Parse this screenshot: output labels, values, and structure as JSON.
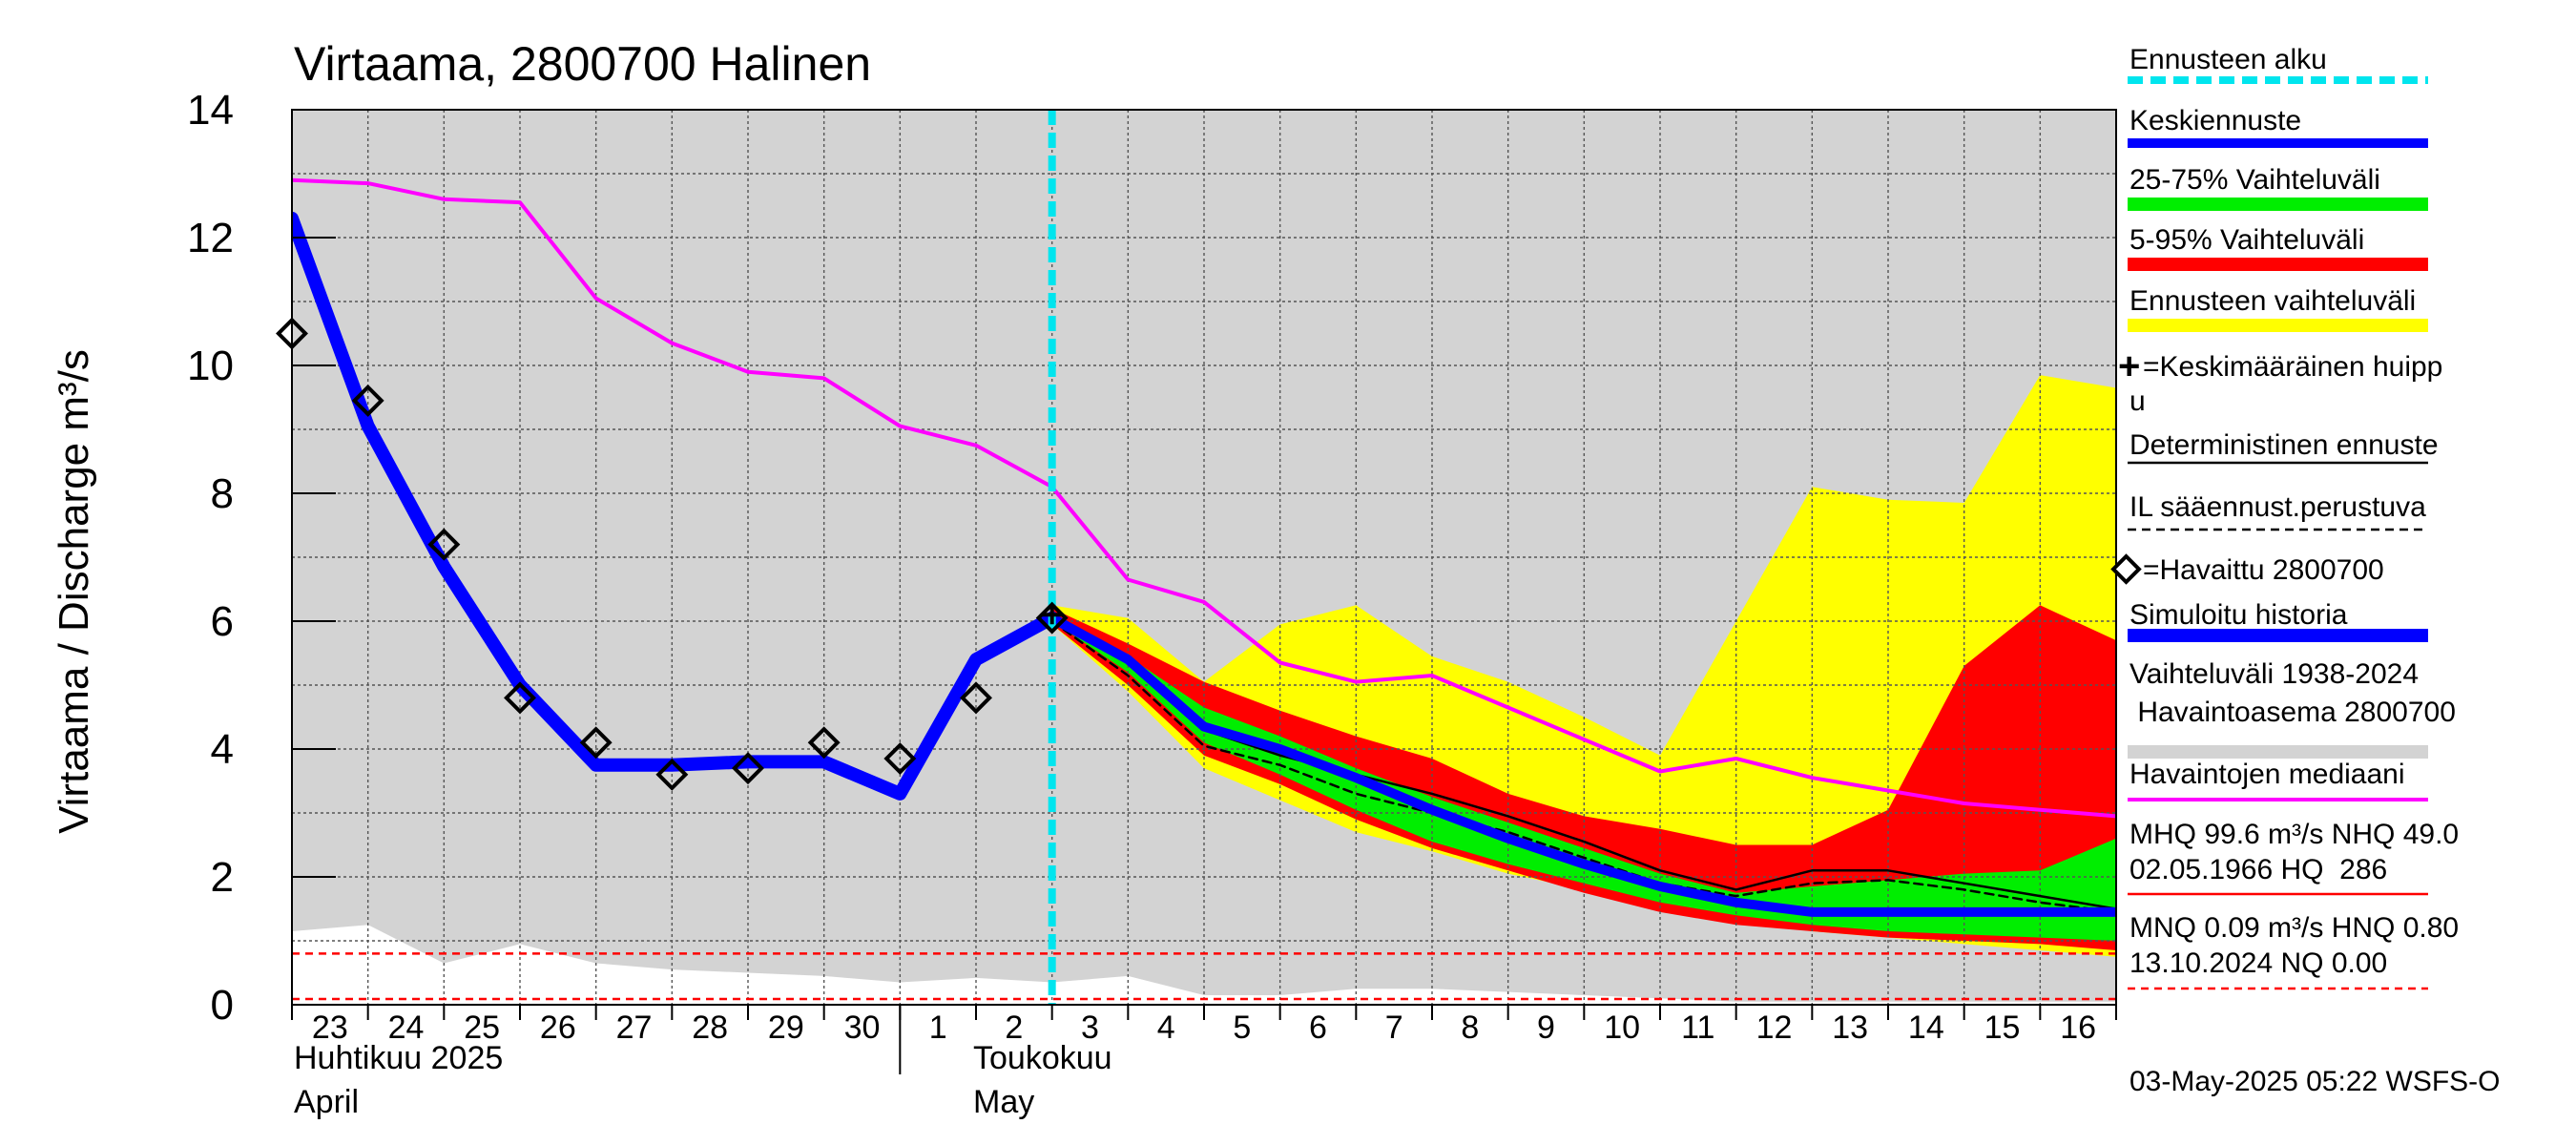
{
  "chart_data": {
    "type": "line",
    "title": "Virtaama, 2800700 Halinen",
    "ylabel": "Virtaama / Discharge   m³/s",
    "ylim": [
      0,
      14
    ],
    "y_ticks": [
      "0",
      "2",
      "4",
      "6",
      "8",
      "10",
      "12",
      "14"
    ],
    "x_tick_labels": [
      "23",
      "24",
      "25",
      "26",
      "27",
      "28",
      "29",
      "30",
      "1",
      "2",
      "3",
      "4",
      "5",
      "6",
      "7",
      "8",
      "9",
      "10",
      "11",
      "12",
      "13",
      "14",
      "15",
      "16"
    ],
    "month_labels": {
      "april_fi": "Huhtikuu  2025",
      "april_en": "April",
      "may_fi": "Toukokuu",
      "may_en": "May"
    },
    "x_days": [
      0,
      1,
      2,
      3,
      4,
      5,
      6,
      7,
      8,
      9,
      10,
      11,
      12,
      13,
      14,
      15,
      16,
      17,
      18,
      19,
      20,
      21,
      22,
      23,
      24
    ],
    "forecast_start_day": 10,
    "series": [
      {
        "name": "Vaihteluväli 1938-2024 Havaintoasema 2800700 (max)",
        "color": "#d3d3d3",
        "values": [
          14,
          14,
          14,
          14,
          14,
          14,
          14,
          14,
          14,
          14,
          14,
          14,
          14,
          14,
          14,
          14,
          14,
          14,
          14,
          14,
          14,
          14,
          14,
          14,
          14
        ]
      },
      {
        "name": "Vaihteluväli 1938-2024 Havaintoasema 2800700 (min)",
        "color": "#d3d3d3",
        "values": [
          1.15,
          1.25,
          0.65,
          0.95,
          0.65,
          0.55,
          0.5,
          0.45,
          0.35,
          0.42,
          0.35,
          0.45,
          0.15,
          0.15,
          0.25,
          0.25,
          0.2,
          0.15,
          0.1,
          0.05,
          0.05,
          0.05,
          0.05,
          0.05,
          0.05
        ]
      },
      {
        "name": "Ennusteen vaihteluväli (max)",
        "color": "#ffff00",
        "x": [
          10,
          11,
          12,
          13,
          14,
          15,
          16,
          17,
          18,
          19,
          20,
          21,
          22,
          23,
          24
        ],
        "values": [
          6.25,
          6.05,
          5.05,
          5.95,
          6.25,
          5.45,
          5.05,
          4.5,
          3.9,
          6.0,
          8.1,
          7.9,
          7.85,
          9.85,
          9.65
        ]
      },
      {
        "name": "Ennusteen vaihteluväli (min)",
        "color": "#ffff00",
        "x": [
          10,
          11,
          12,
          13,
          14,
          15,
          16,
          17,
          18,
          19,
          20,
          21,
          22,
          23,
          24
        ],
        "values": [
          5.95,
          4.9,
          3.7,
          3.2,
          2.7,
          2.4,
          2.05,
          1.8,
          1.5,
          1.3,
          1.15,
          1.05,
          0.95,
          0.85,
          0.75
        ]
      },
      {
        "name": "5-95% Vaihteluväli (upper)",
        "color": "#ff0000",
        "x": [
          10,
          11,
          12,
          13,
          14,
          15,
          16,
          17,
          18,
          19,
          20,
          21,
          22,
          23,
          24
        ],
        "values": [
          6.2,
          5.65,
          5.05,
          4.6,
          4.2,
          3.85,
          3.3,
          2.95,
          2.75,
          2.5,
          2.5,
          3.05,
          5.3,
          6.25,
          5.7
        ]
      },
      {
        "name": "5-95% Vaihteluväli (lower)",
        "color": "#ff0000",
        "x": [
          10,
          11,
          12,
          13,
          14,
          15,
          16,
          17,
          18,
          19,
          20,
          21,
          22,
          23,
          24
        ],
        "values": [
          5.95,
          5.0,
          3.9,
          3.45,
          2.9,
          2.45,
          2.1,
          1.75,
          1.45,
          1.25,
          1.15,
          1.05,
          1.0,
          0.95,
          0.85
        ]
      },
      {
        "name": "25-75% Vaihteluväli (upper)",
        "color": "#00ee00",
        "x": [
          10,
          11,
          12,
          13,
          14,
          15,
          16,
          17,
          18,
          19,
          20,
          21,
          22,
          23,
          24
        ],
        "values": [
          6.1,
          5.45,
          4.65,
          4.2,
          3.7,
          3.25,
          2.85,
          2.45,
          2.05,
          1.75,
          1.85,
          1.95,
          2.05,
          2.1,
          2.6
        ]
      },
      {
        "name": "25-75% Vaihteluväli (lower)",
        "color": "#00ee00",
        "x": [
          10,
          11,
          12,
          13,
          14,
          15,
          16,
          17,
          18,
          19,
          20,
          21,
          22,
          23,
          24
        ],
        "values": [
          6.0,
          5.2,
          4.1,
          3.6,
          3.05,
          2.55,
          2.2,
          1.9,
          1.6,
          1.4,
          1.25,
          1.15,
          1.1,
          1.05,
          1.0
        ]
      },
      {
        "name": "Havaintojen mediaani",
        "color": "#ff00ff",
        "values": [
          12.9,
          12.85,
          12.6,
          12.55,
          11.05,
          10.35,
          9.9,
          9.8,
          9.05,
          8.75,
          8.1,
          6.65,
          6.3,
          5.35,
          5.05,
          5.15,
          4.65,
          4.15,
          3.65,
          3.85,
          3.55,
          3.35,
          3.15,
          3.05,
          2.95
        ]
      },
      {
        "name": "Deterministinen ennuste",
        "color": "#000000",
        "x": [
          10,
          11,
          12,
          13,
          14,
          15,
          16,
          17,
          18,
          19,
          20,
          21,
          22,
          23,
          24
        ],
        "values": [
          6.1,
          5.4,
          4.3,
          3.9,
          3.6,
          3.3,
          2.95,
          2.55,
          2.1,
          1.8,
          2.1,
          2.1,
          1.9,
          1.7,
          1.5
        ]
      },
      {
        "name": "IL sääennust.perustuva",
        "color": "#000000",
        "dashed": true,
        "x": [
          10,
          11,
          12,
          13,
          14,
          15,
          16,
          17,
          18,
          19,
          20,
          21,
          22,
          23,
          24
        ],
        "values": [
          6.0,
          5.15,
          4.05,
          3.75,
          3.3,
          3.0,
          2.7,
          2.3,
          1.9,
          1.7,
          1.9,
          1.95,
          1.8,
          1.6,
          1.45
        ]
      },
      {
        "name": "Keskiennuste",
        "color": "#0000ff",
        "x": [
          10,
          11,
          12,
          13,
          14,
          15,
          16,
          17,
          18,
          19,
          20,
          21,
          22,
          23,
          24
        ],
        "values": [
          6.05,
          5.4,
          4.35,
          4.0,
          3.55,
          3.05,
          2.6,
          2.2,
          1.85,
          1.6,
          1.45,
          1.45,
          1.45,
          1.45,
          1.45
        ]
      },
      {
        "name": "Simuloitu historia",
        "color": "#0000ff",
        "x": [
          0,
          1,
          2,
          3,
          4,
          5,
          6,
          7,
          8,
          9,
          10
        ],
        "values": [
          12.3,
          9.05,
          6.85,
          5.0,
          3.75,
          3.75,
          3.8,
          3.8,
          3.3,
          5.4,
          6.05
        ]
      },
      {
        "name": "Havaittu 2800700",
        "marker": "diamond",
        "x": [
          0,
          1,
          2,
          3,
          4,
          5,
          6,
          7,
          8,
          9,
          10
        ],
        "values": [
          10.5,
          9.45,
          7.2,
          4.8,
          4.1,
          3.6,
          3.7,
          4.1,
          3.85,
          4.8,
          6.05
        ]
      }
    ],
    "reference_lines": [
      {
        "name": "MHQ 99.6",
        "value": 99.6,
        "color": "#ff0000"
      },
      {
        "name": "HNQ 0.80",
        "value": 0.8,
        "color": "#ff0000"
      },
      {
        "name": "MNQ 0.09",
        "value": 0.09,
        "color": "#ff0000"
      }
    ],
    "legend_position": "right",
    "grid": true
  },
  "legend": {
    "forecast_start": "Ennusteen alku",
    "mean_forecast": "Keskiennuste",
    "range_25_75": "25-75% Vaihteluväli",
    "range_5_95": "5-95% Vaihteluväli",
    "forecast_range": "Ennusteen vaihteluväli",
    "mean_peak_line1": "=Keskimääräinen huipp",
    "mean_peak_line2": "u",
    "deterministic": "Deterministinen ennuste",
    "il_based": "IL sääennust.perustuva",
    "observed": "=Havaittu 2800700",
    "simulated": "Simuloitu historia",
    "hist_range_line1": "Vaihteluväli 1938-2024",
    "hist_range_line2": " Havaintoasema 2800700",
    "median": "Havaintojen mediaani",
    "mhq_line1": "MHQ 99.6 m³/s NHQ 49.0",
    "mhq_line2": "02.05.1966 HQ  286",
    "mnq_line1": "MNQ 0.09 m³/s HNQ 0.80",
    "mnq_line2": "13.10.2024 NQ 0.00"
  },
  "footer": "03-May-2025 05:22 WSFS-O",
  "colors": {
    "grey": "#d3d3d3",
    "yellow": "#ffff00",
    "red": "#ff0000",
    "green": "#00ee00",
    "blue": "#0000ff",
    "magenta": "#ff00ff",
    "cyan": "#00e5ee"
  }
}
